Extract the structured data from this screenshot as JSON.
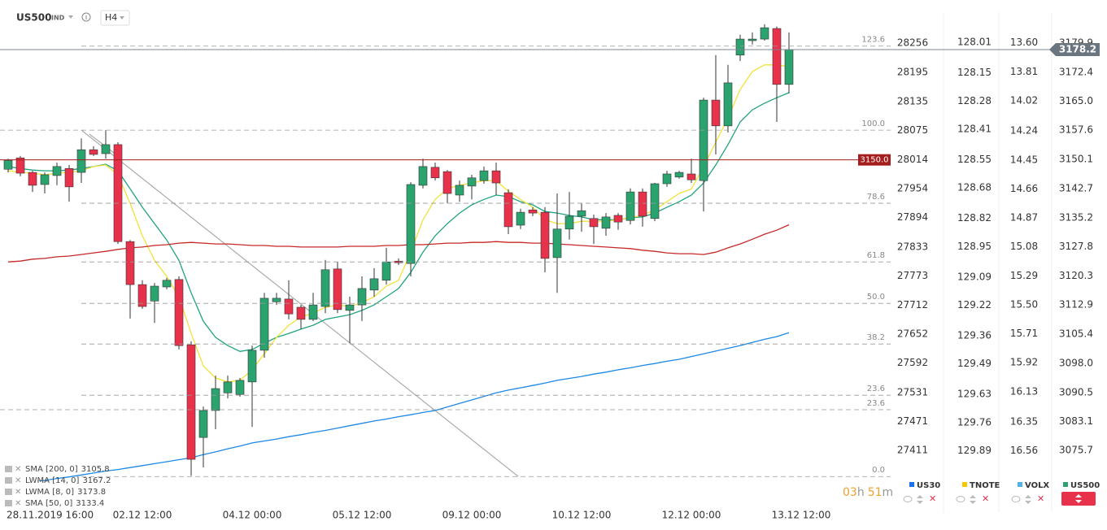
{
  "chart_data": {
    "type": "candlestick",
    "symbol": "US500",
    "market": "IND",
    "interval": "H4",
    "up_color": "#2ba36e",
    "down_color": "#e8314b",
    "categories": [
      "28.11.2019 16:00",
      null,
      null,
      null,
      null,
      null,
      null,
      null,
      null,
      null,
      null,
      "02.12 12:00",
      null,
      null,
      null,
      null,
      null,
      null,
      null,
      null,
      "04.12 00:00",
      null,
      null,
      null,
      null,
      null,
      null,
      null,
      null,
      "05.12 12:00",
      null,
      null,
      null,
      null,
      null,
      null,
      null,
      null,
      "09.12 00:00",
      null,
      null,
      null,
      null,
      null,
      null,
      null,
      null,
      "10.12 12:00",
      null,
      null,
      null,
      null,
      null,
      null,
      null,
      null,
      "12.12 00:00",
      null,
      null,
      null,
      null,
      null,
      null,
      null,
      null,
      "13.12 12:00"
    ],
    "open": [
      3147.6,
      3150.5,
      3146.8,
      3143.7,
      3146.0,
      3147.8,
      3146.8,
      3152.6,
      3151.6,
      3153.9,
      3129.1,
      3118.1,
      3113.9,
      3117.5,
      3119.4,
      3102.7,
      3079.0,
      3085.9,
      3090.4,
      3090.0,
      3093.2,
      3101.3,
      3113.7,
      3114.4,
      3112.3,
      3109.2,
      3112.5,
      3122.1,
      3111.5,
      3112.9,
      3116.7,
      3119.2,
      3124.1,
      3123.5,
      3143.5,
      3148.1,
      3147.0,
      3141.0,
      3143.3,
      3144.7,
      3147.2,
      3141.6,
      3133.3,
      3137.2,
      3136.6,
      3125.0,
      3132.3,
      3135.6,
      3135.0,
      3132.5,
      3135.8,
      3134.5,
      3141.8,
      3135.0,
      3143.9,
      3145.6,
      3146.4,
      3144.7,
      3165.3,
      3158.7,
      3176.8,
      3180.5,
      3180.9,
      3183.6,
      3169.3,
      null
    ],
    "high": [
      3150.3,
      3151.0,
      3147.2,
      3146.8,
      3149.3,
      3148.7,
      3155.5,
      3153.5,
      3157.6,
      3154.5,
      3129.5,
      3119.2,
      3118.5,
      3119.8,
      3120.2,
      3103.6,
      3086.9,
      3094.8,
      3094.8,
      3094.2,
      3102.5,
      3116.0,
      3116.0,
      3119.2,
      3112.9,
      3116.0,
      3124.4,
      3123.9,
      3115.0,
      3120.2,
      3122.3,
      3127.5,
      3124.8,
      3144.3,
      3150.3,
      3149.3,
      3147.4,
      3144.7,
      3146.2,
      3148.3,
      3149.3,
      3142.5,
      3137.5,
      3137.9,
      3137.9,
      3141.4,
      3141.8,
      3138.9,
      3136.0,
      3136.4,
      3136.4,
      3142.7,
      3142.7,
      3144.1,
      3147.2,
      3147.2,
      3150.3,
      3165.9,
      3176.8,
      3174.3,
      3182.0,
      3182.6,
      3184.7,
      3184.1,
      3182.6,
      null
    ],
    "low": [
      3146.8,
      3145.8,
      3141.8,
      3141.4,
      3143.5,
      3139.3,
      3144.1,
      3151.0,
      3150.3,
      3128.5,
      3109.4,
      3111.9,
      3108.3,
      3116.9,
      3101.5,
      3069.2,
      3071.3,
      3081.1,
      3089.0,
      3089.4,
      3081.7,
      3099.4,
      3112.9,
      3109.2,
      3106.7,
      3108.8,
      3110.8,
      3110.8,
      3103.1,
      3108.8,
      3115.0,
      3118.1,
      3123.1,
      3120.2,
      3142.7,
      3144.7,
      3138.9,
      3139.3,
      3139.9,
      3143.9,
      3141.0,
      3131.0,
      3132.3,
      3135.6,
      3121.2,
      3116.0,
      3129.6,
      3131.6,
      3128.5,
      3130.6,
      3132.1,
      3133.5,
      3132.9,
      3134.3,
      3143.1,
      3145.2,
      3144.1,
      3136.8,
      3151.4,
      3157.0,
      3175.3,
      3179.5,
      3180.5,
      3159.7,
      3167.0,
      null
    ],
    "close": [
      3149.9,
      3146.6,
      3143.5,
      3146.2,
      3148.3,
      3143.1,
      3152.6,
      3151.4,
      3153.9,
      3129.1,
      3118.1,
      3112.5,
      3117.7,
      3119.2,
      3102.5,
      3073.4,
      3085.9,
      3091.5,
      3093.2,
      3093.6,
      3101.3,
      3114.6,
      3114.6,
      3110.6,
      3109.2,
      3112.9,
      3121.9,
      3111.7,
      3112.9,
      3117.1,
      3119.6,
      3123.9,
      3123.7,
      3143.7,
      3148.3,
      3145.4,
      3141.4,
      3143.5,
      3145.4,
      3147.2,
      3144.1,
      3132.9,
      3136.6,
      3136.4,
      3124.8,
      3132.3,
      3135.6,
      3137.0,
      3132.9,
      3135.4,
      3134.1,
      3141.8,
      3135.6,
      3143.9,
      3146.4,
      3146.8,
      3144.9,
      3165.3,
      3158.7,
      3169.7,
      3180.9,
      3180.9,
      3183.8,
      3169.3,
      3178.2,
      null
    ],
    "ylim": [
      3067.8,
      3188.4
    ],
    "yticks": [
      3179.9,
      3172.4,
      {
        "value": 3165,
        "label": "3165.0"
      },
      3157.6,
      3150.1,
      3142.7,
      3135.2,
      3127.8,
      3120.3,
      3112.9,
      3105.4,
      {
        "value": 3098,
        "label": "3098.0"
      },
      3090.5,
      3083.1,
      3075.7
    ],
    "series": [
      {
        "name": "SMA [200, 0]",
        "color": "#1e88e5",
        "values": [
          3066.5,
          3067.0,
          3067.5,
          3068.0,
          3068.5,
          3068.9,
          3069.4,
          3069.9,
          3070.4,
          3070.8,
          3071.3,
          3071.8,
          3072.3,
          3072.8,
          3073.3,
          3073.8,
          3074.6,
          3075.3,
          3076.1,
          3076.8,
          3077.6,
          3078.1,
          3078.6,
          3079.2,
          3079.7,
          3080.3,
          3080.8,
          3081.4,
          3082.0,
          3082.6,
          3083.2,
          3083.7,
          3084.3,
          3084.8,
          3085.4,
          3085.9,
          3086.8,
          3087.7,
          3088.6,
          3089.5,
          3090.4,
          3091.1,
          3091.7,
          3092.3,
          3092.9,
          3093.6,
          3094.1,
          3094.6,
          3095.2,
          3095.7,
          3096.3,
          3096.8,
          3097.4,
          3097.9,
          3098.5,
          3099.0,
          3099.7,
          3100.4,
          3101.1,
          3101.8,
          3102.5,
          3103.3,
          3104.1,
          3104.8,
          3105.8,
          null
        ]
      },
      {
        "name": "LWMA [14, 0]",
        "color": "#1fa37f",
        "values": [
          3148.3,
          3147.8,
          3147.4,
          3147.2,
          3147.2,
          3147.4,
          3147.8,
          3148.3,
          3148.9,
          3147.2,
          3142.6,
          3137.9,
          3133.7,
          3129.5,
          3124.3,
          3116.0,
          3108.7,
          3104.6,
          3102.5,
          3101.0,
          3101.5,
          3103.1,
          3104.6,
          3105.6,
          3106.7,
          3107.7,
          3109.2,
          3109.8,
          3110.4,
          3111.5,
          3112.9,
          3115.0,
          3117.1,
          3121.2,
          3126.4,
          3130.6,
          3133.7,
          3136.4,
          3138.5,
          3139.9,
          3141.0,
          3140.6,
          3139.3,
          3138.5,
          3136.8,
          3136.4,
          3135.8,
          3135.4,
          3134.7,
          3134.7,
          3134.7,
          3135.2,
          3135.4,
          3136.4,
          3137.9,
          3139.3,
          3141.0,
          3144.1,
          3148.7,
          3153.9,
          3159.7,
          3162.8,
          3164.5,
          3165.9,
          3167.2,
          null
        ]
      },
      {
        "name": "LWMA [8, 0]",
        "color": "#f2e23a",
        "values": [
          3147.2,
          3146.8,
          3146.6,
          3146.2,
          3146.6,
          3146.8,
          3147.2,
          3148.3,
          3148.7,
          3146.2,
          3138.9,
          3130.6,
          3124.3,
          3120.2,
          3115.0,
          3105.6,
          3097.3,
          3094.2,
          3093.2,
          3093.6,
          3096.3,
          3100.4,
          3104.6,
          3107.7,
          3109.8,
          3110.8,
          3112.3,
          3112.9,
          3112.5,
          3113.5,
          3115.0,
          3117.7,
          3119.2,
          3126.4,
          3134.7,
          3139.9,
          3142.6,
          3143.5,
          3144.1,
          3144.7,
          3144.7,
          3142.0,
          3139.9,
          3137.9,
          3134.7,
          3133.7,
          3133.7,
          3134.3,
          3134.3,
          3134.3,
          3134.7,
          3135.2,
          3135.8,
          3137.2,
          3139.3,
          3141.4,
          3142.6,
          3148.3,
          3154.5,
          3160.7,
          3168.0,
          3172.6,
          3174.3,
          3174.3,
          3173.8,
          null
        ]
      },
      {
        "name": "SMA [50, 0]",
        "color": "#c62828",
        "values": [
          3123.9,
          3124.1,
          3124.6,
          3124.8,
          3125.2,
          3125.4,
          3125.8,
          3126.2,
          3126.6,
          3127.1,
          3127.5,
          3127.7,
          3128.1,
          3128.3,
          3128.7,
          3128.9,
          3128.7,
          3128.5,
          3128.5,
          3128.3,
          3128.1,
          3128.1,
          3127.9,
          3127.9,
          3127.7,
          3127.7,
          3127.7,
          3127.7,
          3127.9,
          3127.9,
          3127.9,
          3128.1,
          3128.1,
          3128.3,
          3128.3,
          3128.5,
          3128.7,
          3128.7,
          3128.9,
          3128.9,
          3129.1,
          3128.9,
          3128.9,
          3128.7,
          3128.7,
          3128.5,
          3128.3,
          3128.1,
          3127.9,
          3127.7,
          3127.5,
          3127.3,
          3126.9,
          3126.6,
          3126.2,
          3126.0,
          3126.0,
          3125.8,
          3126.4,
          3127.5,
          3128.5,
          3129.7,
          3131.0,
          3132.0,
          3133.4,
          null
        ]
      }
    ],
    "compare_axes": [
      {
        "name": "US30",
        "color": "#1a73e8",
        "lim": [
          28325.2,
          27346.9
        ],
        "ticks": [
          28256,
          28195,
          28135,
          28075,
          28014,
          27954,
          27894,
          27833,
          27773,
          27712,
          27652,
          27592,
          27531,
          27471,
          27411
        ]
      },
      {
        "name": "TNOTE",
        "color": "#f5c800",
        "lim": [
          127.86,
          130.03
        ],
        "ticks": [
          128.01,
          128.15,
          128.28,
          128.41,
          128.55,
          128.68,
          128.82,
          128.95,
          129.09,
          129.22,
          129.36,
          129.49,
          129.63,
          129.76,
          129.89
        ]
      },
      {
        "name": "VOLX",
        "color": "#4fb3e8",
        "lim": [
          13.36,
          16.78
        ],
        "ticks": [
          {
            "value": 13.6,
            "label": "13.60"
          },
          13.81,
          14.02,
          14.24,
          14.45,
          14.66,
          14.87,
          15.08,
          15.29,
          {
            "value": 15.5,
            "label": "15.50"
          },
          15.71,
          15.92,
          16.13,
          16.35,
          16.56
        ]
      }
    ],
    "level": {
      "value": 3150,
      "label": "3150.0",
      "color": "#a51d1d"
    },
    "fib_levels": [
      {
        "label": "123.6",
        "price": 3179.1
      },
      {
        "label": "100.0",
        "price": 3157.6
      },
      {
        "label": "78.6",
        "price": 3138.9
      },
      {
        "label": "61.8",
        "price": 3123.9
      },
      {
        "label": "50.0",
        "price": 3113.3
      },
      {
        "label": "38.2",
        "price": 3102.9
      },
      {
        "label": "23.6",
        "price": 3089.8
      },
      {
        "label": "23.6",
        "price": 3086.1
      },
      {
        "label": "0.0",
        "price": 3069.0
      }
    ],
    "countdown": {
      "hours": "03",
      "hours_unit": "h",
      "minutes": "51",
      "minutes_unit": "m"
    }
  }
}
